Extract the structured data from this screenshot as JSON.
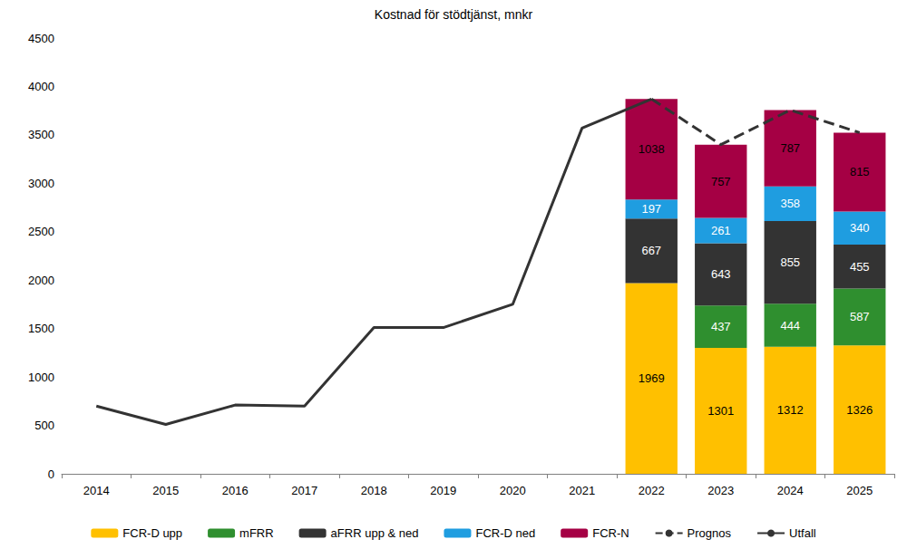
{
  "chart_data": {
    "type": "bar",
    "title": "Kostnad för stödtjänst, mnkr",
    "stacked": true,
    "grid": false,
    "legend": "bottom",
    "categories": [
      "2014",
      "2015",
      "2016",
      "2017",
      "2018",
      "2019",
      "2020",
      "2021",
      "2022",
      "2023",
      "2024",
      "2025"
    ],
    "ylim": [
      0,
      4500
    ],
    "yticks": [
      0,
      500,
      1000,
      1500,
      2000,
      2500,
      3000,
      3500,
      4000,
      4500
    ],
    "series": [
      {
        "name": "FCR-D upp",
        "type": "bar",
        "color": "#ffc000",
        "data_labels": true,
        "values": [
          null,
          null,
          null,
          null,
          null,
          null,
          null,
          null,
          1969,
          1301,
          1312,
          1326
        ]
      },
      {
        "name": "mFRR",
        "type": "bar",
        "color": "#2f8f2f",
        "data_labels": true,
        "values": [
          null,
          null,
          null,
          null,
          null,
          null,
          null,
          null,
          null,
          437,
          444,
          587
        ]
      },
      {
        "name": "aFRR upp & ned",
        "type": "bar",
        "color": "#333333",
        "data_labels": true,
        "values": [
          null,
          null,
          null,
          null,
          null,
          null,
          null,
          null,
          667,
          643,
          855,
          455
        ]
      },
      {
        "name": "FCR-D ned",
        "type": "bar",
        "color": "#1f9de0",
        "data_labels": true,
        "values": [
          null,
          null,
          null,
          null,
          null,
          null,
          null,
          null,
          197,
          261,
          358,
          340
        ]
      },
      {
        "name": "FCR-N",
        "type": "bar",
        "color": "#a50044",
        "data_labels": true,
        "values": [
          null,
          null,
          null,
          null,
          null,
          null,
          null,
          null,
          1038,
          757,
          787,
          815
        ]
      },
      {
        "name": "Prognos",
        "type": "line",
        "color": "#333333",
        "line_style": "dashed",
        "marker": "none",
        "data_labels": false,
        "values": [
          null,
          null,
          null,
          null,
          null,
          null,
          null,
          null,
          3871,
          3399,
          3756,
          3523
        ]
      },
      {
        "name": "Utfall",
        "type": "line",
        "color": "#333333",
        "line_style": "solid",
        "marker": "none",
        "data_labels": false,
        "values": [
          700,
          510,
          710,
          700,
          1510,
          1510,
          1750,
          3570,
          3870,
          null,
          null,
          null
        ]
      }
    ]
  }
}
